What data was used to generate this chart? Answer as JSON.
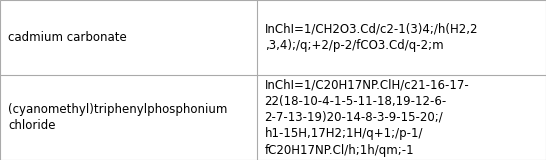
{
  "rows": [
    {
      "col1": "cadmium carbonate",
      "col2": "InChI=1/CH2O3.Cd/c2-1(3)4;/h(H2,2\n,3,4);/q;+2/p-2/fCO3.Cd/q-2;m"
    },
    {
      "col1": "(cyanomethyl)triphenylphosphonium\nchloride",
      "col2": "InChI=1/C20H17NP.ClH/c21-16-17-\n22(18-10-4-1-5-11-18,19-12-6-\n2-7-13-19)20-14-8-3-9-15-20;/\nh1-15H,17H2;1H/q+1;/p-1/\nfC20H17NP.Cl/h;1h/qm;-1"
    }
  ],
  "col_split": 0.47,
  "background_color": "#ffffff",
  "border_color": "#aaaaaa",
  "text_color": "#000000",
  "font_size": 8.5,
  "font_family": "DejaVu Sans",
  "fig_width": 5.46,
  "fig_height": 1.6,
  "dpi": 100
}
